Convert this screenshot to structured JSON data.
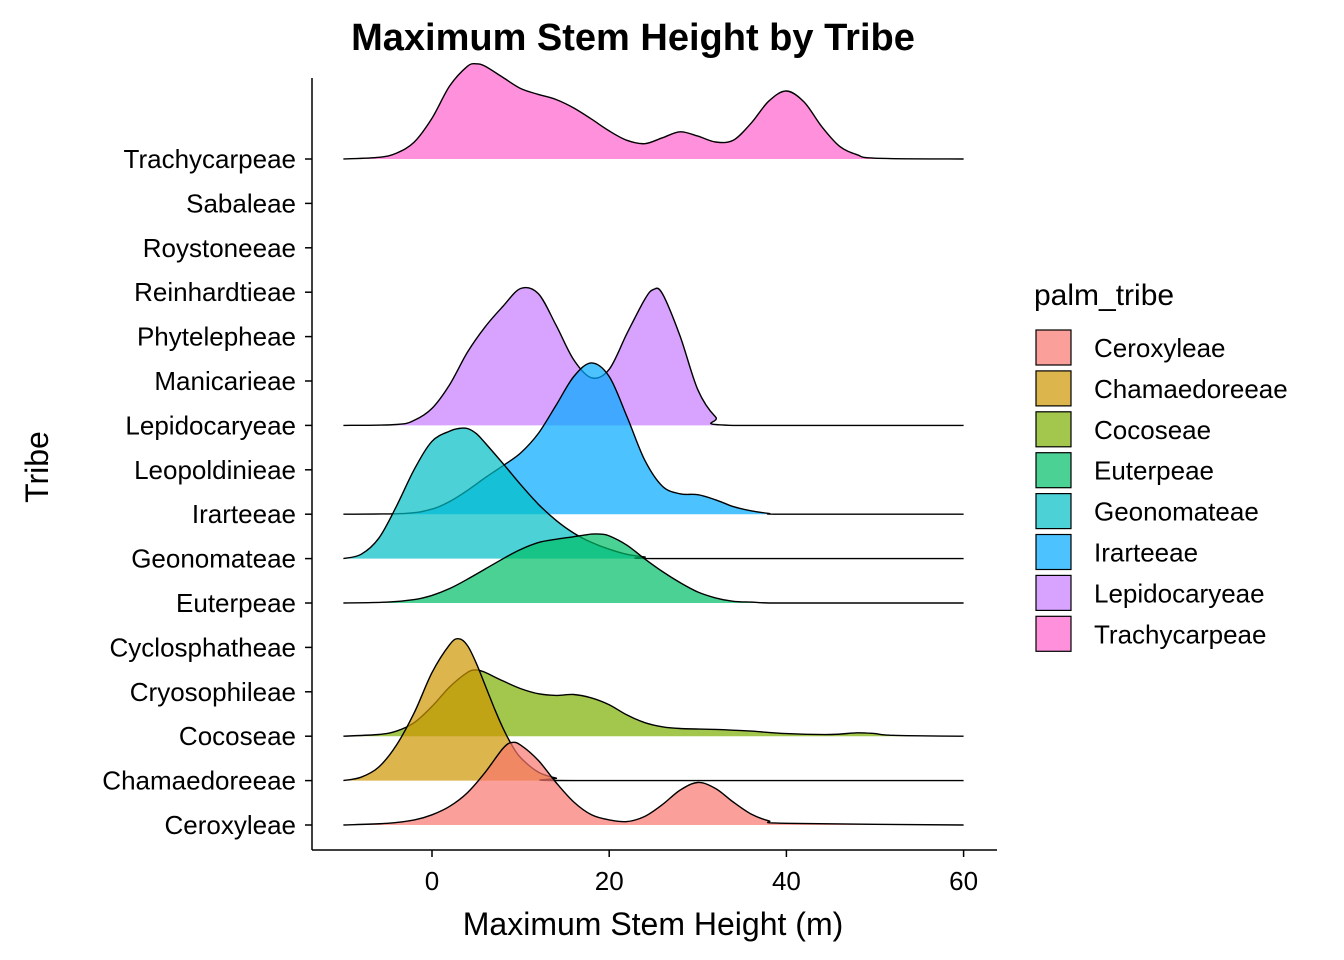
{
  "chart_data": {
    "type": "ridgeline",
    "title": "Maximum Stem Height by Tribe",
    "xlabel": "Maximum Stem Height (m)",
    "ylabel": "Tribe",
    "xlim": [
      -13.5,
      63.5
    ],
    "x_ticks": [
      0,
      20,
      40,
      60
    ],
    "categories": [
      "Ceroxyleae",
      "Chamaedoreeae",
      "Cocoseae",
      "Cryosophileae",
      "Cyclosphatheae",
      "Euterpeae",
      "Geonomateae",
      "Irarteeae",
      "Leopoldinieae",
      "Lepidocaryeae",
      "Manicarieae",
      "Phytelepheae",
      "Reinhardtieae",
      "Roystoneeae",
      "Sabaleae",
      "Trachycarpeae"
    ],
    "grid": false,
    "legend": {
      "title": "palm_tribe",
      "position": "right",
      "entries": [
        {
          "label": "Ceroxyleae",
          "color": "#F8766D"
        },
        {
          "label": "Chamaedoreeae",
          "color": "#CD9600"
        },
        {
          "label": "Cocoseae",
          "color": "#7CAE00"
        },
        {
          "label": "Euterpeae",
          "color": "#00BE67"
        },
        {
          "label": "Geonomateae",
          "color": "#00BFC4"
        },
        {
          "label": "Irarteeae",
          "color": "#00A9FF"
        },
        {
          "label": "Lepidocaryeae",
          "color": "#C77CFF"
        },
        {
          "label": "Trachycarpeae",
          "color": "#FF61CC"
        }
      ]
    },
    "series": [
      {
        "name": "Ceroxyleae",
        "baseline": "Ceroxyleae",
        "color": "#F8766D",
        "x": [
          -10,
          -5,
          -2,
          0,
          2,
          4,
          6,
          8,
          9,
          10,
          12,
          14,
          16,
          18,
          20,
          22,
          24,
          26,
          28,
          30,
          32,
          34,
          36,
          38,
          40,
          60
        ],
        "y": [
          0,
          0.02,
          0.06,
          0.12,
          0.22,
          0.38,
          0.62,
          0.9,
          0.97,
          0.94,
          0.76,
          0.5,
          0.27,
          0.12,
          0.06,
          0.04,
          0.1,
          0.24,
          0.41,
          0.5,
          0.43,
          0.27,
          0.13,
          0.05,
          0.02,
          0
        ]
      },
      {
        "name": "Chamaedoreeae",
        "baseline": "Chamaedoreeae",
        "color": "#CD9600",
        "x": [
          -10,
          -8,
          -6,
          -4,
          -2,
          0,
          2,
          3,
          4,
          5,
          6,
          7,
          8,
          9,
          10,
          12,
          14,
          16,
          60
        ],
        "y": [
          0,
          0.04,
          0.16,
          0.42,
          0.8,
          1.27,
          1.6,
          1.67,
          1.59,
          1.38,
          1.12,
          0.86,
          0.62,
          0.42,
          0.27,
          0.1,
          0.03,
          0,
          0
        ]
      },
      {
        "name": "Cocoseae",
        "baseline": "Cocoseae",
        "color": "#7CAE00",
        "x": [
          -10,
          -6,
          -4,
          -2,
          0,
          2,
          4,
          5,
          6,
          8,
          10,
          12,
          14,
          16,
          18,
          20,
          22,
          24,
          26,
          28,
          32,
          36,
          40,
          45,
          48,
          50,
          52,
          60
        ],
        "y": [
          0,
          0.02,
          0.06,
          0.16,
          0.35,
          0.58,
          0.75,
          0.78,
          0.75,
          0.65,
          0.56,
          0.5,
          0.48,
          0.49,
          0.45,
          0.37,
          0.25,
          0.16,
          0.11,
          0.09,
          0.08,
          0.06,
          0.03,
          0.02,
          0.04,
          0.03,
          0.01,
          0
        ]
      },
      {
        "name": "Euterpeae",
        "baseline": "Euterpeae",
        "color": "#00BE67",
        "x": [
          -10,
          -5,
          -2,
          0,
          2,
          4,
          6,
          8,
          10,
          12,
          14,
          16,
          18,
          19,
          20,
          22,
          24,
          26,
          28,
          30,
          32,
          34,
          36,
          38,
          40,
          60
        ],
        "y": [
          0,
          0.01,
          0.04,
          0.09,
          0.17,
          0.28,
          0.4,
          0.52,
          0.63,
          0.71,
          0.75,
          0.78,
          0.81,
          0.81,
          0.79,
          0.68,
          0.52,
          0.37,
          0.24,
          0.13,
          0.06,
          0.02,
          0.01,
          0,
          0,
          0
        ]
      },
      {
        "name": "Geonomateae",
        "baseline": "Geonomateae",
        "color": "#00BFC4",
        "x": [
          -10,
          -8,
          -6,
          -4,
          -2,
          0,
          2,
          3,
          4,
          5,
          6,
          8,
          10,
          12,
          14,
          16,
          18,
          20,
          22,
          24,
          26,
          60
        ],
        "y": [
          0,
          0.05,
          0.24,
          0.62,
          1.05,
          1.38,
          1.5,
          1.53,
          1.53,
          1.47,
          1.36,
          1.12,
          0.87,
          0.64,
          0.45,
          0.3,
          0.19,
          0.11,
          0.05,
          0.02,
          0,
          0
        ]
      },
      {
        "name": "Irarteeae",
        "baseline": "Irarteeae",
        "color": "#00A9FF",
        "x": [
          -10,
          -3,
          0,
          2,
          4,
          6,
          8,
          10,
          12,
          14,
          16,
          18,
          20,
          22,
          24,
          26,
          28,
          30,
          32,
          34,
          36,
          38,
          40,
          60
        ],
        "y": [
          0,
          0.01,
          0.06,
          0.15,
          0.28,
          0.43,
          0.57,
          0.72,
          0.95,
          1.28,
          1.62,
          1.78,
          1.62,
          1.15,
          0.64,
          0.33,
          0.24,
          0.23,
          0.17,
          0.09,
          0.04,
          0.01,
          0,
          0
        ]
      },
      {
        "name": "Lepidocaryeae",
        "baseline": "Lepidocaryeae",
        "color": "#C77CFF",
        "x": [
          -10,
          -4,
          -2,
          0,
          2,
          4,
          6,
          8,
          10,
          12,
          14,
          16,
          18,
          20,
          22,
          24,
          25,
          26,
          28,
          30,
          32,
          34,
          60
        ],
        "y": [
          0,
          0.01,
          0.06,
          0.2,
          0.48,
          0.86,
          1.16,
          1.4,
          1.61,
          1.55,
          1.18,
          0.77,
          0.56,
          0.66,
          1.08,
          1.48,
          1.6,
          1.55,
          1.05,
          0.42,
          0.1,
          0,
          0
        ]
      },
      {
        "name": "Trachycarpeae",
        "baseline": "Trachycarpeae",
        "color": "#FF61CC",
        "x": [
          -10,
          -6,
          -4,
          -2,
          0,
          2,
          4,
          5,
          6,
          8,
          10,
          12,
          14,
          16,
          18,
          20,
          22,
          24,
          26,
          28,
          30,
          32,
          34,
          36,
          38,
          40,
          42,
          44,
          46,
          48,
          50,
          60
        ],
        "y": [
          0,
          0.02,
          0.07,
          0.2,
          0.48,
          0.86,
          1.09,
          1.12,
          1.09,
          0.96,
          0.83,
          0.76,
          0.7,
          0.6,
          0.47,
          0.33,
          0.22,
          0.18,
          0.25,
          0.32,
          0.27,
          0.2,
          0.22,
          0.42,
          0.68,
          0.8,
          0.67,
          0.38,
          0.15,
          0.05,
          0.01,
          0
        ]
      }
    ]
  }
}
